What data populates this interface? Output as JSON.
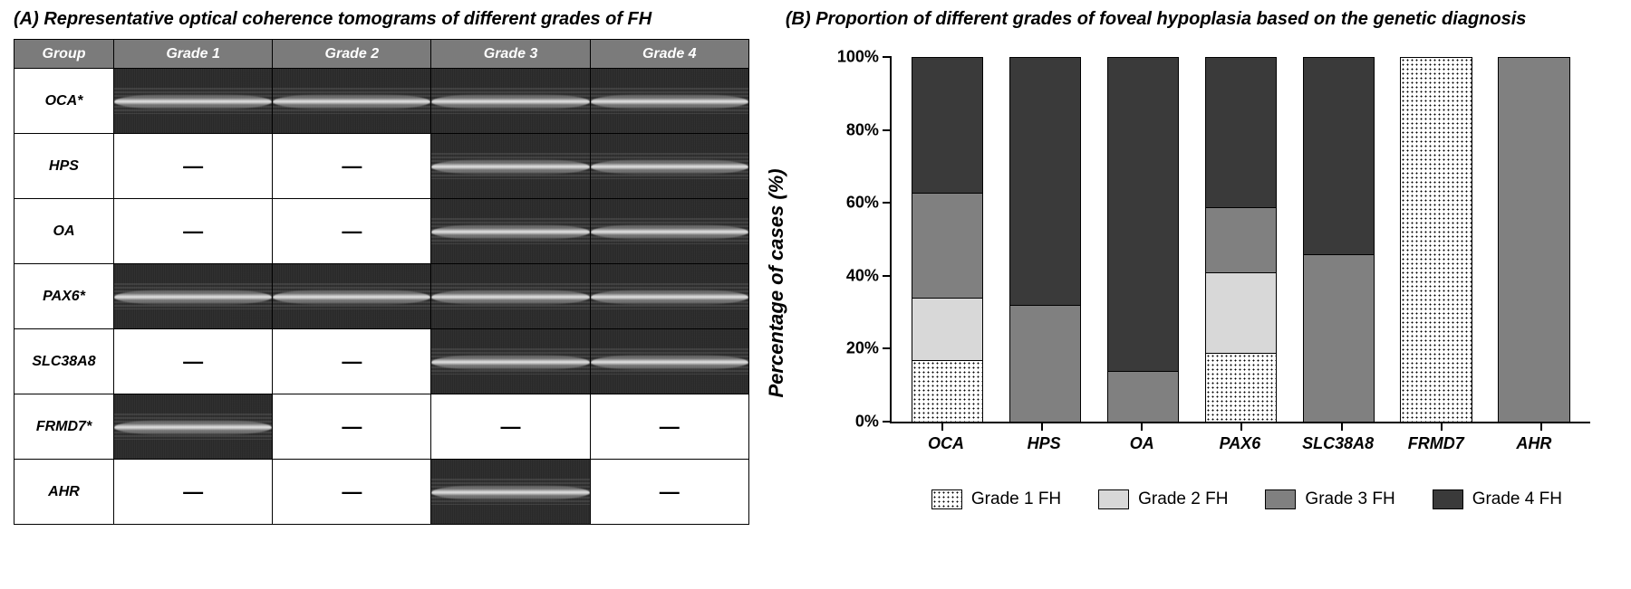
{
  "panelA": {
    "title": "(A) Representative optical coherence tomograms of different grades of FH",
    "columns": [
      "Group",
      "Grade 1",
      "Grade 2",
      "Grade 3",
      "Grade 4"
    ],
    "rows": [
      {
        "label": "OCA*",
        "cells": [
          "img",
          "img",
          "img",
          "img"
        ]
      },
      {
        "label": "HPS",
        "cells": [
          "dash",
          "dash",
          "img",
          "img"
        ]
      },
      {
        "label": "OA",
        "cells": [
          "dash",
          "dash",
          "img",
          "img"
        ]
      },
      {
        "label": "PAX6*",
        "cells": [
          "img",
          "img",
          "img",
          "img"
        ]
      },
      {
        "label": "SLC38A8",
        "cells": [
          "dash",
          "dash",
          "img",
          "img"
        ]
      },
      {
        "label": "FRMD7*",
        "cells": [
          "img",
          "dash",
          "dash",
          "dash"
        ]
      },
      {
        "label": "AHR",
        "cells": [
          "dash",
          "dash",
          "img",
          "dash"
        ]
      }
    ],
    "header_bg": "#7b7b7b",
    "header_fg": "#ffffff",
    "font_size_header": 16,
    "font_size_row": 16
  },
  "panelB": {
    "title": "(B) Proportion of different grades of foveal hypoplasia based on the genetic diagnosis",
    "y_label": "Percentage of cases (%)",
    "y_ticks": [
      0,
      20,
      40,
      60,
      80,
      100
    ],
    "y_tick_suffix": "%",
    "categories": [
      "OCA",
      "HPS",
      "OA",
      "PAX6",
      "SLC38A8",
      "FRMD7",
      "AHR"
    ],
    "series": [
      {
        "name": "Grade 1 FH",
        "fill": "g1",
        "values": [
          17,
          0,
          0,
          19,
          0,
          100,
          0
        ]
      },
      {
        "name": "Grade 2 FH",
        "fill": "g2",
        "values": [
          17,
          0,
          0,
          22,
          0,
          0,
          0
        ]
      },
      {
        "name": "Grade 3 FH",
        "fill": "g3",
        "values": [
          29,
          32,
          14,
          18,
          46,
          0,
          100
        ]
      },
      {
        "name": "Grade 4 FH",
        "fill": "g4",
        "values": [
          37,
          68,
          86,
          41,
          54,
          0,
          0
        ]
      }
    ],
    "colors": {
      "g1_bg": "#ffffff",
      "g1_dot": "#000000",
      "g2": "#d8d8d8",
      "g3": "#808080",
      "g4": "#3a3a3a",
      "axis": "#000000",
      "background": "#ffffff"
    },
    "bar_width_pct": 10.5,
    "title_fontsize": 20,
    "axis_label_fontsize": 22,
    "tick_fontsize": 18,
    "legend_fontsize": 19
  }
}
